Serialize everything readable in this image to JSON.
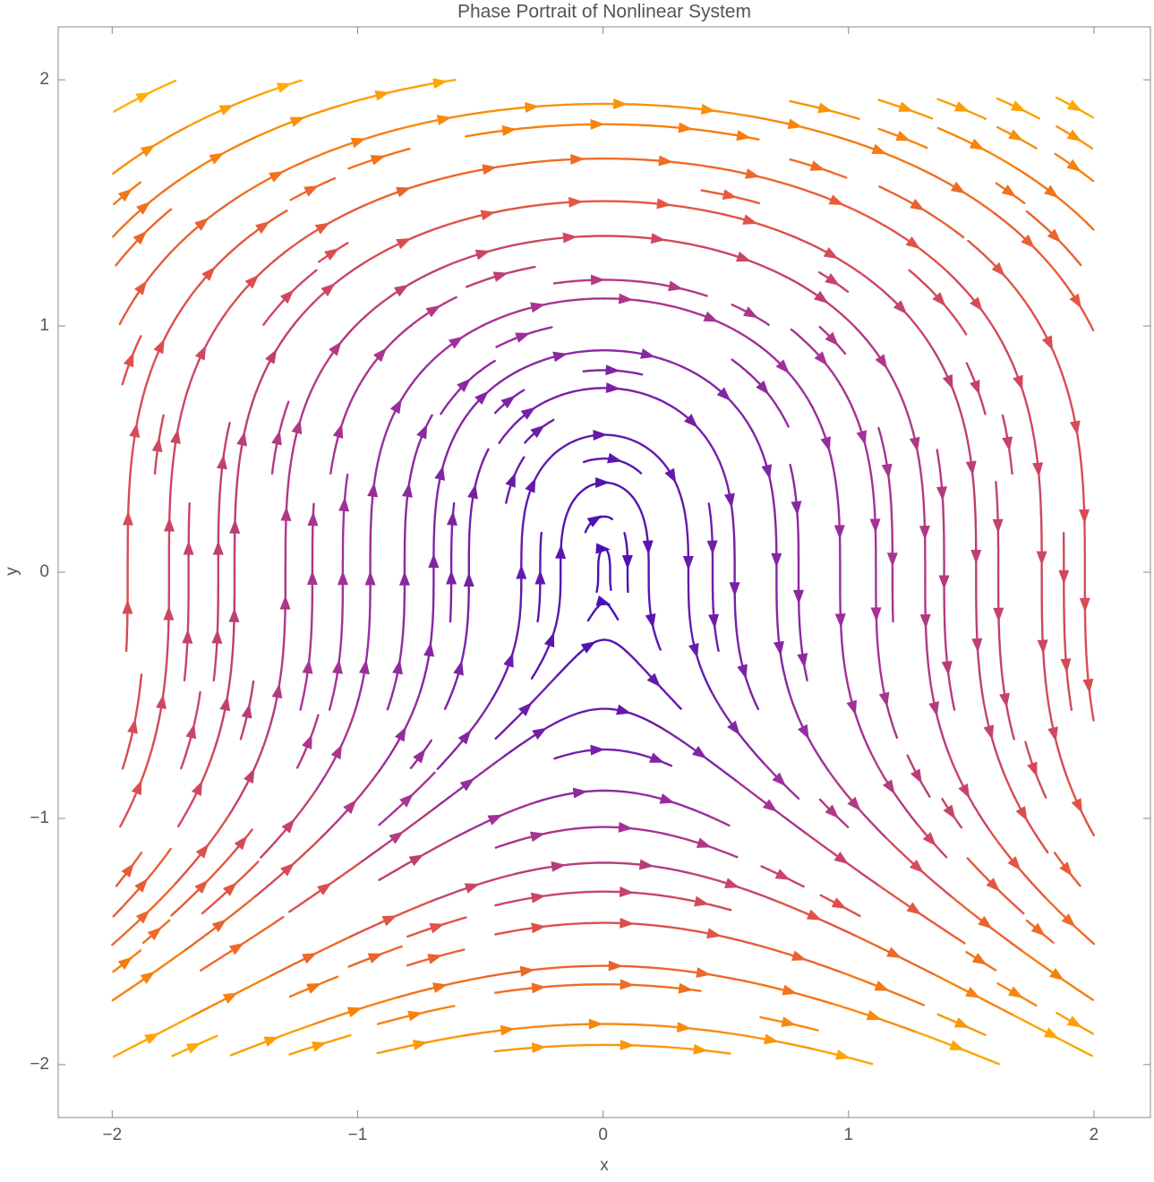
{
  "chart_data": {
    "type": "streamplot",
    "title": "Phase Portrait of Nonlinear System",
    "x_label": "x",
    "y_label": "y",
    "xlim": [
      -2.22,
      2.23
    ],
    "ylim": [
      -2.215,
      2.215
    ],
    "xticks": [
      {
        "value": -2,
        "label": "−2"
      },
      {
        "value": -1,
        "label": "−1"
      },
      0,
      1,
      2
    ],
    "yticks": [
      {
        "value": -2,
        "label": "−2"
      },
      {
        "value": -1,
        "label": "−1"
      },
      0,
      1,
      2
    ],
    "color_scale": [
      "#4a0fb4",
      "#a0309a",
      "#e0504a",
      "#f57a10",
      "#ffb000"
    ]
  }
}
